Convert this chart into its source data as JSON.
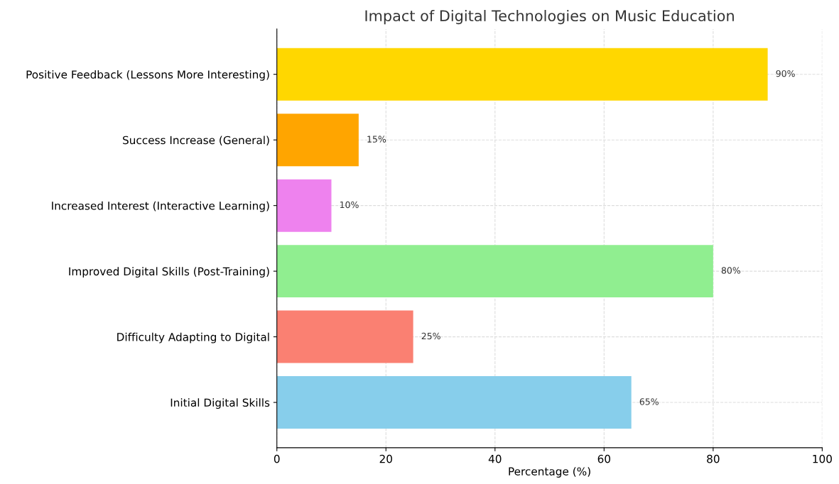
{
  "chart_data": {
    "type": "bar",
    "orientation": "horizontal",
    "title": "Impact of Digital Technologies on Music Education",
    "xlabel": "Percentage (%)",
    "categories": [
      "Positive Feedback (Lessons More Interesting)",
      "Success Increase (General)",
      "Increased Interest (Interactive Learning)",
      "Improved Digital Skills (Post-Training)",
      "Difficulty Adapting to Digital",
      "Initial Digital Skills"
    ],
    "values": [
      90,
      15,
      10,
      80,
      25,
      65
    ],
    "colors": [
      "#ffd700",
      "#ffa500",
      "#ee82ee",
      "#90ee90",
      "#fa8072",
      "#87ceeb"
    ],
    "value_labels": [
      "90%",
      "15%",
      "10%",
      "80%",
      "25%",
      "65%"
    ],
    "xlim": [
      0,
      100
    ],
    "xticks": [
      0,
      20,
      40,
      60,
      80,
      100
    ],
    "grid": true
  }
}
